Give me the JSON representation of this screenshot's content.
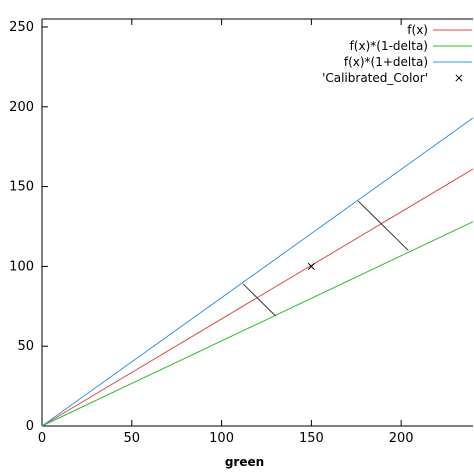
{
  "chart_data": {
    "type": "line",
    "title": "",
    "xlabel": "green",
    "ylabel": "",
    "xlim": [
      0,
      240
    ],
    "ylim": [
      0,
      255
    ],
    "xticks": [
      "0",
      "50",
      "100",
      "150",
      "200"
    ],
    "yticks": [
      "0",
      "50",
      "100",
      "150",
      "200",
      "250"
    ],
    "grid": false,
    "legend": "top-right",
    "series": [
      {
        "name": "f(x)",
        "color": "#e04a4a",
        "x": [
          0,
          240
        ],
        "y": [
          0,
          161
        ]
      },
      {
        "name": "f(x)*(1-delta)",
        "color": "#33bb33",
        "x": [
          0,
          240
        ],
        "y": [
          0,
          128
        ]
      },
      {
        "name": "f(x)*(1+delta)",
        "color": "#3399dd",
        "x": [
          0,
          240
        ],
        "y": [
          0,
          193
        ]
      }
    ],
    "points": [
      {
        "name": "'Calibrated_Color'",
        "marker": "x",
        "color": "#000000",
        "x": 150,
        "y": 100
      }
    ],
    "annotations": [
      {
        "type": "segment",
        "color": "#333333",
        "x": [
          112,
          130
        ],
        "y": [
          89,
          69
        ]
      },
      {
        "type": "segment",
        "color": "#333333",
        "x": [
          176,
          204
        ],
        "y": [
          141,
          110
        ]
      }
    ]
  }
}
